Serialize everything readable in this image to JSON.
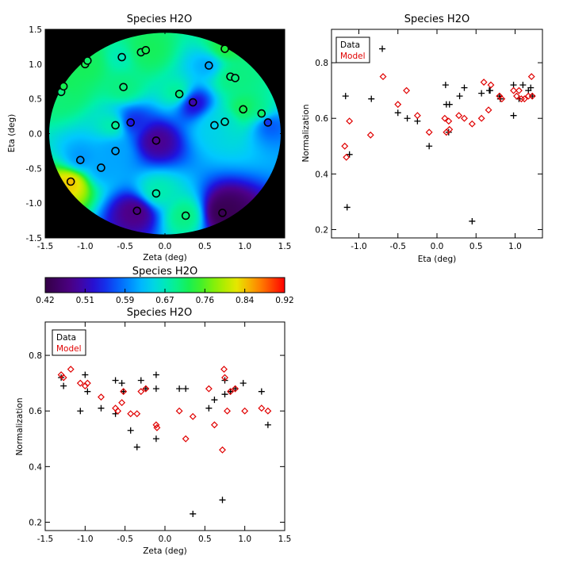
{
  "colors": {
    "data_marker": "#000000",
    "model_marker": "#e00000",
    "background": "#000000"
  },
  "colormap": "rainbow",
  "chart_data": [
    {
      "id": "map",
      "type": "heatmap",
      "title": "Species H2O",
      "xlabel": "Zeta (deg)",
      "ylabel": "Eta (deg)",
      "xlim": [
        -1.5,
        1.5
      ],
      "ylim": [
        -1.5,
        1.5
      ],
      "xticks": [
        -1.5,
        -1.0,
        -0.5,
        0.0,
        0.5,
        1.0,
        1.5
      ],
      "yticks": [
        -1.5,
        -1.0,
        -0.5,
        0.0,
        0.5,
        1.0,
        1.5
      ],
      "field_radius_deg": 1.45,
      "points": [
        {
          "zeta": -1.3,
          "eta": 0.6,
          "value": 0.7
        },
        {
          "zeta": -1.27,
          "eta": 0.68,
          "value": 0.72
        },
        {
          "zeta": -1.0,
          "eta": 1.0,
          "value": 0.72
        },
        {
          "zeta": -0.97,
          "eta": 1.05,
          "value": 0.71
        },
        {
          "zeta": -0.54,
          "eta": 1.1,
          "value": 0.67
        },
        {
          "zeta": -0.3,
          "eta": 1.17,
          "value": 0.71
        },
        {
          "zeta": -0.24,
          "eta": 1.2,
          "value": 0.72
        },
        {
          "zeta": -0.52,
          "eta": 0.67,
          "value": 0.7
        },
        {
          "zeta": 0.55,
          "eta": 0.98,
          "value": 0.61
        },
        {
          "zeta": 0.75,
          "eta": 1.22,
          "value": 0.73
        },
        {
          "zeta": 0.82,
          "eta": 0.82,
          "value": 0.7
        },
        {
          "zeta": 0.88,
          "eta": 0.8,
          "value": 0.7
        },
        {
          "zeta": 0.18,
          "eta": 0.57,
          "value": 0.7
        },
        {
          "zeta": 0.35,
          "eta": 0.45,
          "value": 0.5
        },
        {
          "zeta": 0.98,
          "eta": 0.35,
          "value": 0.72
        },
        {
          "zeta": 1.21,
          "eta": 0.29,
          "value": 0.71
        },
        {
          "zeta": 1.29,
          "eta": 0.16,
          "value": 0.55
        },
        {
          "zeta": 0.75,
          "eta": 0.17,
          "value": 0.66
        },
        {
          "zeta": 0.62,
          "eta": 0.12,
          "value": 0.64
        },
        {
          "zeta": -0.62,
          "eta": 0.12,
          "value": 0.69
        },
        {
          "zeta": -0.43,
          "eta": 0.16,
          "value": 0.53
        },
        {
          "zeta": -0.11,
          "eta": -0.1,
          "value": 0.48
        },
        {
          "zeta": -0.62,
          "eta": -0.25,
          "value": 0.61
        },
        {
          "zeta": -1.06,
          "eta": -0.38,
          "value": 0.6
        },
        {
          "zeta": -0.8,
          "eta": -0.49,
          "value": 0.61
        },
        {
          "zeta": -1.18,
          "eta": -0.69,
          "value": 0.84
        },
        {
          "zeta": -0.11,
          "eta": -0.86,
          "value": 0.68
        },
        {
          "zeta": -0.35,
          "eta": -1.11,
          "value": 0.47
        },
        {
          "zeta": 0.26,
          "eta": -1.18,
          "value": 0.7
        },
        {
          "zeta": 0.72,
          "eta": -1.14,
          "value": 0.43
        }
      ]
    },
    {
      "id": "colorbar",
      "type": "heatmap",
      "title": "Species H2O",
      "range": [
        0.42,
        0.92
      ],
      "tick_labels": [
        "0.42",
        "0.51",
        "0.59",
        "0.67",
        "0.76",
        "0.84",
        "0.92"
      ]
    },
    {
      "id": "eta",
      "type": "scatter",
      "title": "Species H2O",
      "xlabel": "Eta (deg)",
      "ylabel": "Normalization",
      "xlim": [
        -1.35,
        1.35
      ],
      "ylim": [
        0.17,
        0.92
      ],
      "xticks": [
        -1.0,
        -0.5,
        0.0,
        0.5,
        1.0
      ],
      "yticks": [
        0.2,
        0.4,
        0.6,
        0.8
      ],
      "legend": {
        "position": "top-left",
        "entries": [
          "Data",
          "Model"
        ]
      },
      "series": [
        {
          "name": "Data",
          "marker": "plus",
          "points": [
            [
              -1.17,
              0.68
            ],
            [
              -1.15,
              0.28
            ],
            [
              -1.12,
              0.47
            ],
            [
              -0.84,
              0.67
            ],
            [
              -0.7,
              0.85
            ],
            [
              -0.5,
              0.62
            ],
            [
              -0.38,
              0.6
            ],
            [
              -0.25,
              0.59
            ],
            [
              -0.1,
              0.5
            ],
            [
              0.11,
              0.72
            ],
            [
              0.12,
              0.65
            ],
            [
              0.15,
              0.55
            ],
            [
              0.16,
              0.65
            ],
            [
              0.29,
              0.68
            ],
            [
              0.35,
              0.71
            ],
            [
              0.45,
              0.23
            ],
            [
              0.57,
              0.69
            ],
            [
              0.67,
              0.7
            ],
            [
              0.68,
              0.7
            ],
            [
              0.8,
              0.68
            ],
            [
              0.81,
              0.67
            ],
            [
              0.98,
              0.72
            ],
            [
              0.98,
              0.61
            ],
            [
              1.05,
              0.67
            ],
            [
              1.1,
              0.72
            ],
            [
              1.17,
              0.7
            ],
            [
              1.2,
              0.71
            ],
            [
              1.22,
              0.68
            ]
          ]
        },
        {
          "name": "Model",
          "marker": "diamond",
          "points": [
            [
              -1.18,
              0.5
            ],
            [
              -1.16,
              0.46
            ],
            [
              -1.12,
              0.59
            ],
            [
              -0.85,
              0.54
            ],
            [
              -0.69,
              0.75
            ],
            [
              -0.5,
              0.65
            ],
            [
              -0.39,
              0.7
            ],
            [
              -0.25,
              0.61
            ],
            [
              -0.1,
              0.55
            ],
            [
              0.1,
              0.6
            ],
            [
              0.12,
              0.55
            ],
            [
              0.15,
              0.59
            ],
            [
              0.16,
              0.56
            ],
            [
              0.28,
              0.61
            ],
            [
              0.35,
              0.6
            ],
            [
              0.45,
              0.58
            ],
            [
              0.57,
              0.6
            ],
            [
              0.6,
              0.73
            ],
            [
              0.66,
              0.63
            ],
            [
              0.69,
              0.72
            ],
            [
              0.8,
              0.68
            ],
            [
              0.83,
              0.67
            ],
            [
              0.98,
              0.7
            ],
            [
              1.02,
              0.68
            ],
            [
              1.05,
              0.7
            ],
            [
              1.08,
              0.67
            ],
            [
              1.12,
              0.67
            ],
            [
              1.17,
              0.68
            ],
            [
              1.21,
              0.75
            ],
            [
              1.22,
              0.68
            ]
          ]
        }
      ]
    },
    {
      "id": "zeta",
      "type": "scatter",
      "title": "Species H2O",
      "xlabel": "Zeta (deg)",
      "ylabel": "Normalization",
      "xlim": [
        -1.5,
        1.5
      ],
      "ylim": [
        0.17,
        0.92
      ],
      "xticks": [
        -1.5,
        -1.0,
        -0.5,
        0.0,
        0.5,
        1.0,
        1.5
      ],
      "yticks": [
        0.2,
        0.4,
        0.6,
        0.8
      ],
      "legend": {
        "position": "top-left",
        "entries": [
          "Data",
          "Model"
        ]
      },
      "series": [
        {
          "name": "Data",
          "marker": "plus",
          "points": [
            [
              -1.3,
              0.72
            ],
            [
              -1.27,
              0.69
            ],
            [
              -1.06,
              0.6
            ],
            [
              -1.0,
              0.73
            ],
            [
              -0.97,
              0.67
            ],
            [
              -0.8,
              0.61
            ],
            [
              -0.62,
              0.71
            ],
            [
              -0.62,
              0.59
            ],
            [
              -0.54,
              0.7
            ],
            [
              -0.52,
              0.67
            ],
            [
              -0.43,
              0.53
            ],
            [
              -0.35,
              0.47
            ],
            [
              -0.3,
              0.71
            ],
            [
              -0.24,
              0.68
            ],
            [
              -0.11,
              0.73
            ],
            [
              -0.11,
              0.68
            ],
            [
              -0.11,
              0.5
            ],
            [
              0.18,
              0.68
            ],
            [
              0.26,
              0.68
            ],
            [
              0.35,
              0.23
            ],
            [
              0.55,
              0.61
            ],
            [
              0.62,
              0.64
            ],
            [
              0.72,
              0.28
            ],
            [
              0.75,
              0.71
            ],
            [
              0.75,
              0.66
            ],
            [
              0.82,
              0.67
            ],
            [
              0.88,
              0.68
            ],
            [
              0.98,
              0.7
            ],
            [
              1.21,
              0.67
            ],
            [
              1.29,
              0.55
            ]
          ]
        },
        {
          "name": "Model",
          "marker": "diamond",
          "points": [
            [
              -1.3,
              0.73
            ],
            [
              -1.27,
              0.72
            ],
            [
              -1.18,
              0.75
            ],
            [
              -1.06,
              0.7
            ],
            [
              -1.0,
              0.69
            ],
            [
              -0.97,
              0.7
            ],
            [
              -0.8,
              0.65
            ],
            [
              -0.62,
              0.61
            ],
            [
              -0.59,
              0.6
            ],
            [
              -0.54,
              0.63
            ],
            [
              -0.52,
              0.67
            ],
            [
              -0.43,
              0.59
            ],
            [
              -0.35,
              0.59
            ],
            [
              -0.3,
              0.67
            ],
            [
              -0.24,
              0.68
            ],
            [
              -0.11,
              0.55
            ],
            [
              -0.1,
              0.54
            ],
            [
              0.18,
              0.6
            ],
            [
              0.26,
              0.5
            ],
            [
              0.35,
              0.58
            ],
            [
              0.55,
              0.68
            ],
            [
              0.62,
              0.55
            ],
            [
              0.72,
              0.46
            ],
            [
              0.74,
              0.75
            ],
            [
              0.75,
              0.72
            ],
            [
              0.78,
              0.6
            ],
            [
              0.82,
              0.67
            ],
            [
              0.88,
              0.68
            ],
            [
              1.0,
              0.6
            ],
            [
              1.21,
              0.61
            ],
            [
              1.29,
              0.6
            ]
          ]
        }
      ]
    }
  ]
}
